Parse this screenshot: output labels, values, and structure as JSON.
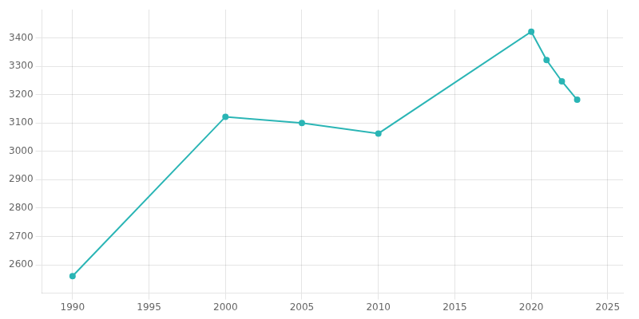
{
  "chart_data": {
    "type": "line",
    "x": [
      1990,
      2000,
      2005,
      2010,
      2020,
      2021,
      2022,
      2023
    ],
    "values": [
      2560,
      3122,
      3100,
      3063,
      3422,
      3322,
      3247,
      3182
    ],
    "color": "#2ab5b5",
    "marker": "circle",
    "xlim": [
      1988,
      2026
    ],
    "ylim": [
      2500,
      3500
    ],
    "xticks": [
      1990,
      1995,
      2000,
      2005,
      2010,
      2015,
      2020,
      2025
    ],
    "yticks": [
      2600,
      2700,
      2800,
      2900,
      3000,
      3100,
      3200,
      3300,
      3400
    ],
    "grid": true
  }
}
